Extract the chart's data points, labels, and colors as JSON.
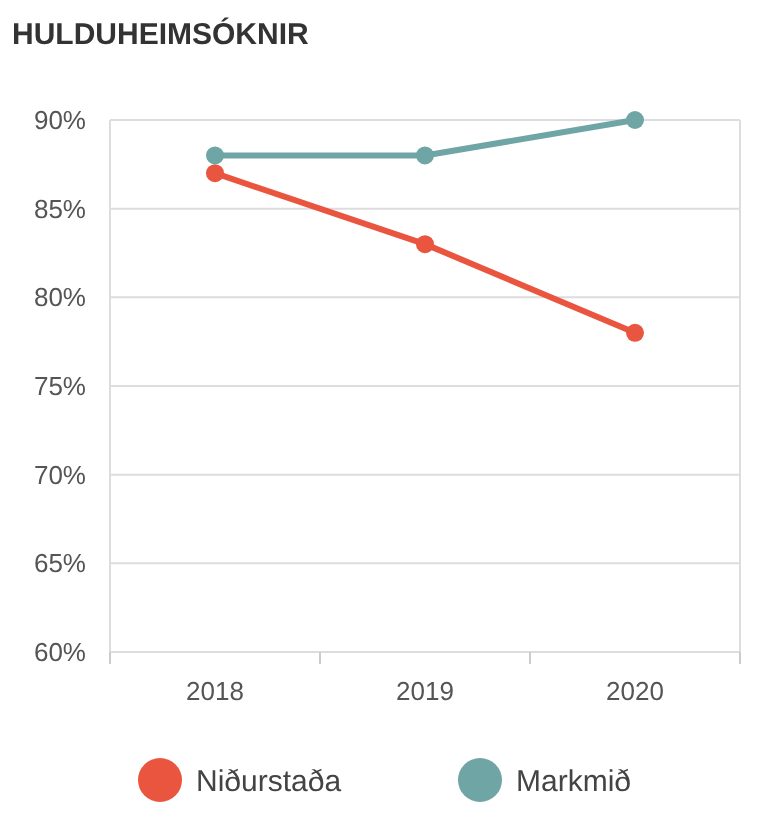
{
  "chart_data": {
    "type": "line",
    "title": "HULDUHEIMSÓKNIR",
    "categories": [
      "2018",
      "2019",
      "2020"
    ],
    "series": [
      {
        "name": "Niðurstaða",
        "color": "#e9553f",
        "values": [
          87,
          83,
          78
        ]
      },
      {
        "name": "Markmið",
        "color": "#70a5a5",
        "values": [
          88,
          88,
          90
        ]
      }
    ],
    "ylim": [
      60,
      90
    ],
    "yticks": [
      {
        "value": 60,
        "label": "60%"
      },
      {
        "value": 65,
        "label": "65%"
      },
      {
        "value": 70,
        "label": "70%"
      },
      {
        "value": 75,
        "label": "75%"
      },
      {
        "value": 80,
        "label": "80%"
      },
      {
        "value": 85,
        "label": "85%"
      },
      {
        "value": 90,
        "label": "90%"
      }
    ],
    "grid": "y",
    "legend": "bottom",
    "marker": "circle",
    "line_style": "solid"
  }
}
